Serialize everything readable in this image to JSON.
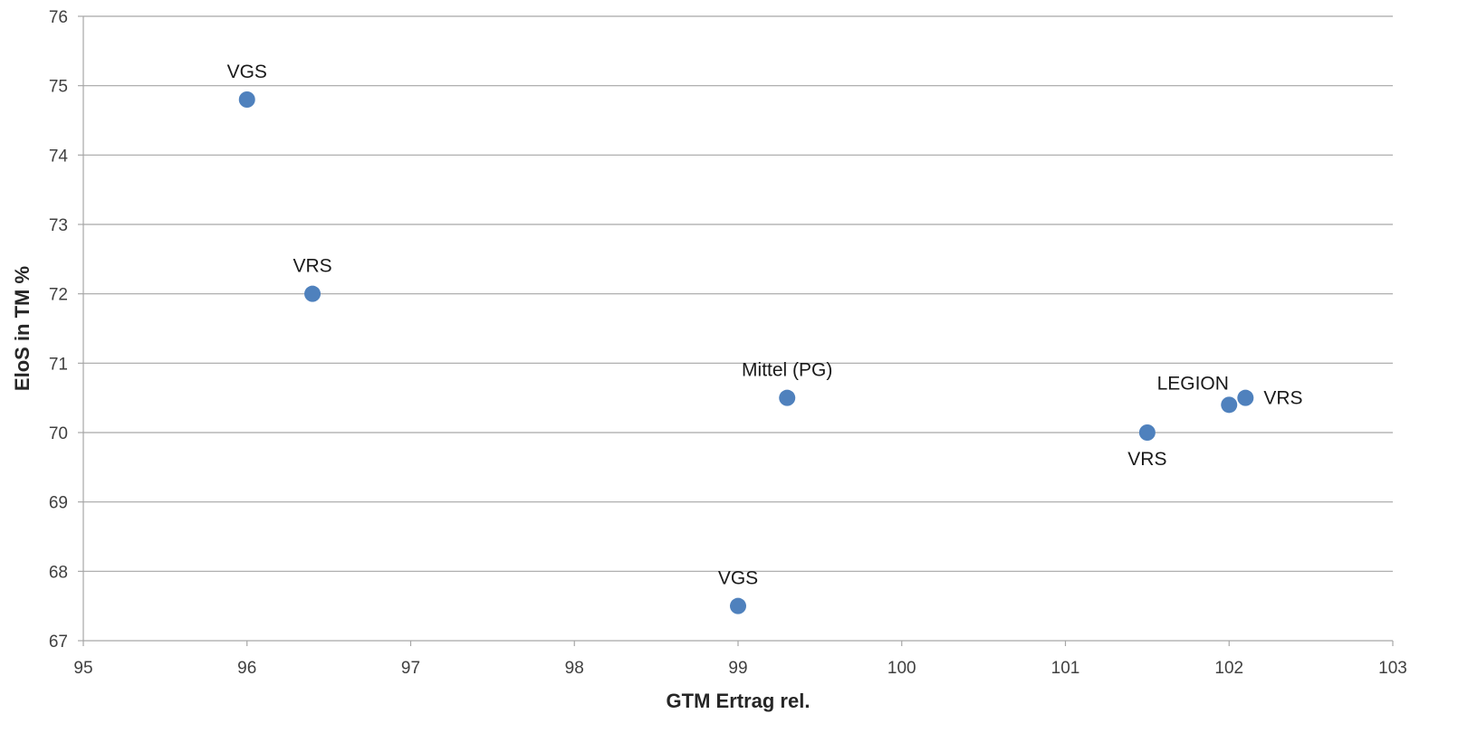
{
  "chart_data": {
    "type": "scatter",
    "title": "",
    "xlabel": "GTM Ertrag rel.",
    "ylabel": "EloS in TM %",
    "xlim": [
      95,
      103
    ],
    "ylim": [
      67,
      76
    ],
    "x_ticks": [
      95,
      96,
      97,
      98,
      99,
      100,
      101,
      102,
      103
    ],
    "y_ticks": [
      67,
      68,
      69,
      70,
      71,
      72,
      73,
      74,
      75,
      76
    ],
    "grid": "horizontal",
    "legend": "none",
    "marker_color": "#4f81bd",
    "points": [
      {
        "x": 96.0,
        "y": 74.8,
        "label": "VGS",
        "label_position": "above"
      },
      {
        "x": 96.4,
        "y": 72.0,
        "label": "VRS",
        "label_position": "above"
      },
      {
        "x": 99.3,
        "y": 70.5,
        "label": "Mittel (PG)",
        "label_position": "above"
      },
      {
        "x": 99.0,
        "y": 67.5,
        "label": "VGS",
        "label_position": "above"
      },
      {
        "x": 101.5,
        "y": 70.0,
        "label": "VRS",
        "label_position": "below"
      },
      {
        "x": 102.0,
        "y": 70.4,
        "label": "LEGION",
        "label_position": "above-left"
      },
      {
        "x": 102.1,
        "y": 70.5,
        "label": "VRS",
        "label_position": "right"
      }
    ]
  }
}
